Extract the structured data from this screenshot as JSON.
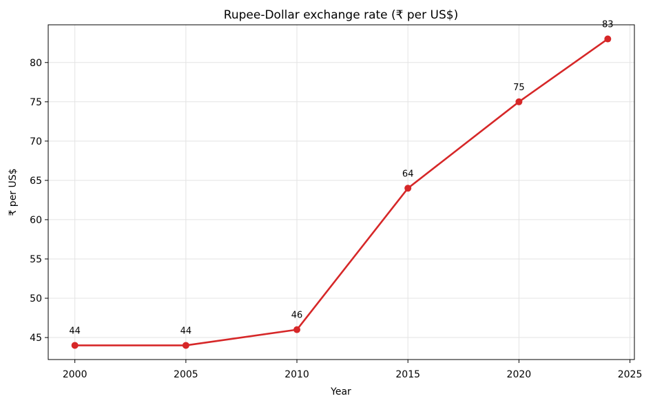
{
  "chart_data": {
    "type": "line",
    "title": "Rupee-Dollar exchange rate (₹ per US$)",
    "xlabel": "Year",
    "ylabel": "₹ per US$",
    "x": [
      2000,
      2005,
      2010,
      2015,
      2020,
      2024
    ],
    "series": [
      {
        "values": [
          44,
          44,
          46,
          64,
          75,
          83
        ],
        "color": "#d62728"
      }
    ],
    "data_labels": [
      "44",
      "44",
      "46",
      "64",
      "75",
      "83"
    ],
    "xlim": [
      1998.8,
      2025.2
    ],
    "ylim": [
      42.2,
      84.8
    ],
    "xticks": [
      2000,
      2005,
      2010,
      2015,
      2020,
      2025
    ],
    "yticks": [
      45,
      50,
      55,
      60,
      65,
      70,
      75,
      80
    ],
    "grid": true
  }
}
